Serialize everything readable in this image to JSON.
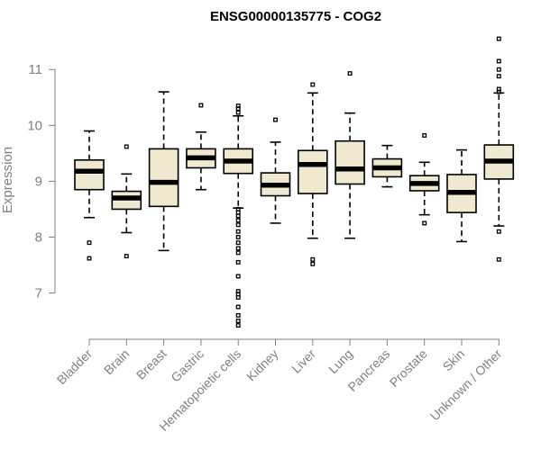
{
  "chart_data": {
    "type": "boxplot",
    "title": "ENSG00000135775 - COG2",
    "ylabel": "Expression",
    "xlabel": "",
    "ylim": [
      6.3,
      11.6
    ],
    "yticks": [
      7,
      8,
      9,
      10,
      11
    ],
    "grid": false,
    "colors": {
      "box_fill": "#efe9d2",
      "box_stroke": "#000000",
      "axis": "#808080"
    },
    "categories": [
      "Bladder",
      "Brain",
      "Breast",
      "Gastric",
      "Hematopoietic cells",
      "Kidney",
      "Liver",
      "Lung",
      "Pancreas",
      "Prostate",
      "Skin",
      "Unknown / Other"
    ],
    "boxes": [
      {
        "name": "Bladder",
        "whisker_low": 8.35,
        "q1": 8.85,
        "median": 9.18,
        "q3": 9.38,
        "whisker_high": 9.9,
        "outliers": [
          7.9,
          7.62
        ]
      },
      {
        "name": "Brain",
        "whisker_low": 8.08,
        "q1": 8.5,
        "median": 8.7,
        "q3": 8.82,
        "whisker_high": 9.13,
        "outliers": [
          9.62,
          7.66
        ]
      },
      {
        "name": "Breast",
        "whisker_low": 7.76,
        "q1": 8.55,
        "median": 8.98,
        "q3": 9.58,
        "whisker_high": 10.6,
        "outliers": []
      },
      {
        "name": "Gastric",
        "whisker_low": 8.85,
        "q1": 9.24,
        "median": 9.42,
        "q3": 9.58,
        "whisker_high": 9.88,
        "outliers": [
          10.36
        ]
      },
      {
        "name": "Hematopoietic cells",
        "whisker_low": 8.52,
        "q1": 9.14,
        "median": 9.36,
        "q3": 9.58,
        "whisker_high": 10.17,
        "outliers": [
          10.35,
          10.3,
          10.23,
          8.5,
          8.44,
          8.38,
          8.3,
          8.22,
          8.1,
          8.0,
          7.9,
          7.8,
          7.72,
          7.55,
          7.3,
          7.03,
          6.98,
          6.92,
          6.75,
          6.6,
          6.5,
          6.42
        ]
      },
      {
        "name": "Kidney",
        "whisker_low": 8.25,
        "q1": 8.74,
        "median": 8.93,
        "q3": 9.15,
        "whisker_high": 9.7,
        "outliers": [
          10.1
        ]
      },
      {
        "name": "Liver",
        "whisker_low": 7.98,
        "q1": 8.78,
        "median": 9.3,
        "q3": 9.55,
        "whisker_high": 10.58,
        "outliers": [
          10.73,
          7.6,
          7.52
        ]
      },
      {
        "name": "Lung",
        "whisker_low": 7.98,
        "q1": 8.95,
        "median": 9.22,
        "q3": 9.72,
        "whisker_high": 10.22,
        "outliers": [
          10.93
        ]
      },
      {
        "name": "Pancreas",
        "whisker_low": 8.9,
        "q1": 9.08,
        "median": 9.24,
        "q3": 9.4,
        "whisker_high": 9.64,
        "outliers": []
      },
      {
        "name": "Prostate",
        "whisker_low": 8.4,
        "q1": 8.83,
        "median": 8.96,
        "q3": 9.1,
        "whisker_high": 9.34,
        "outliers": [
          9.82,
          8.25
        ]
      },
      {
        "name": "Skin",
        "whisker_low": 7.92,
        "q1": 8.44,
        "median": 8.8,
        "q3": 9.12,
        "whisker_high": 9.56,
        "outliers": []
      },
      {
        "name": "Unknown / Other",
        "whisker_low": 8.2,
        "q1": 9.04,
        "median": 9.36,
        "q3": 9.65,
        "whisker_high": 10.58,
        "outliers": [
          11.55,
          11.15,
          11.0,
          10.88,
          10.65,
          10.6,
          8.1,
          7.6
        ]
      }
    ]
  }
}
